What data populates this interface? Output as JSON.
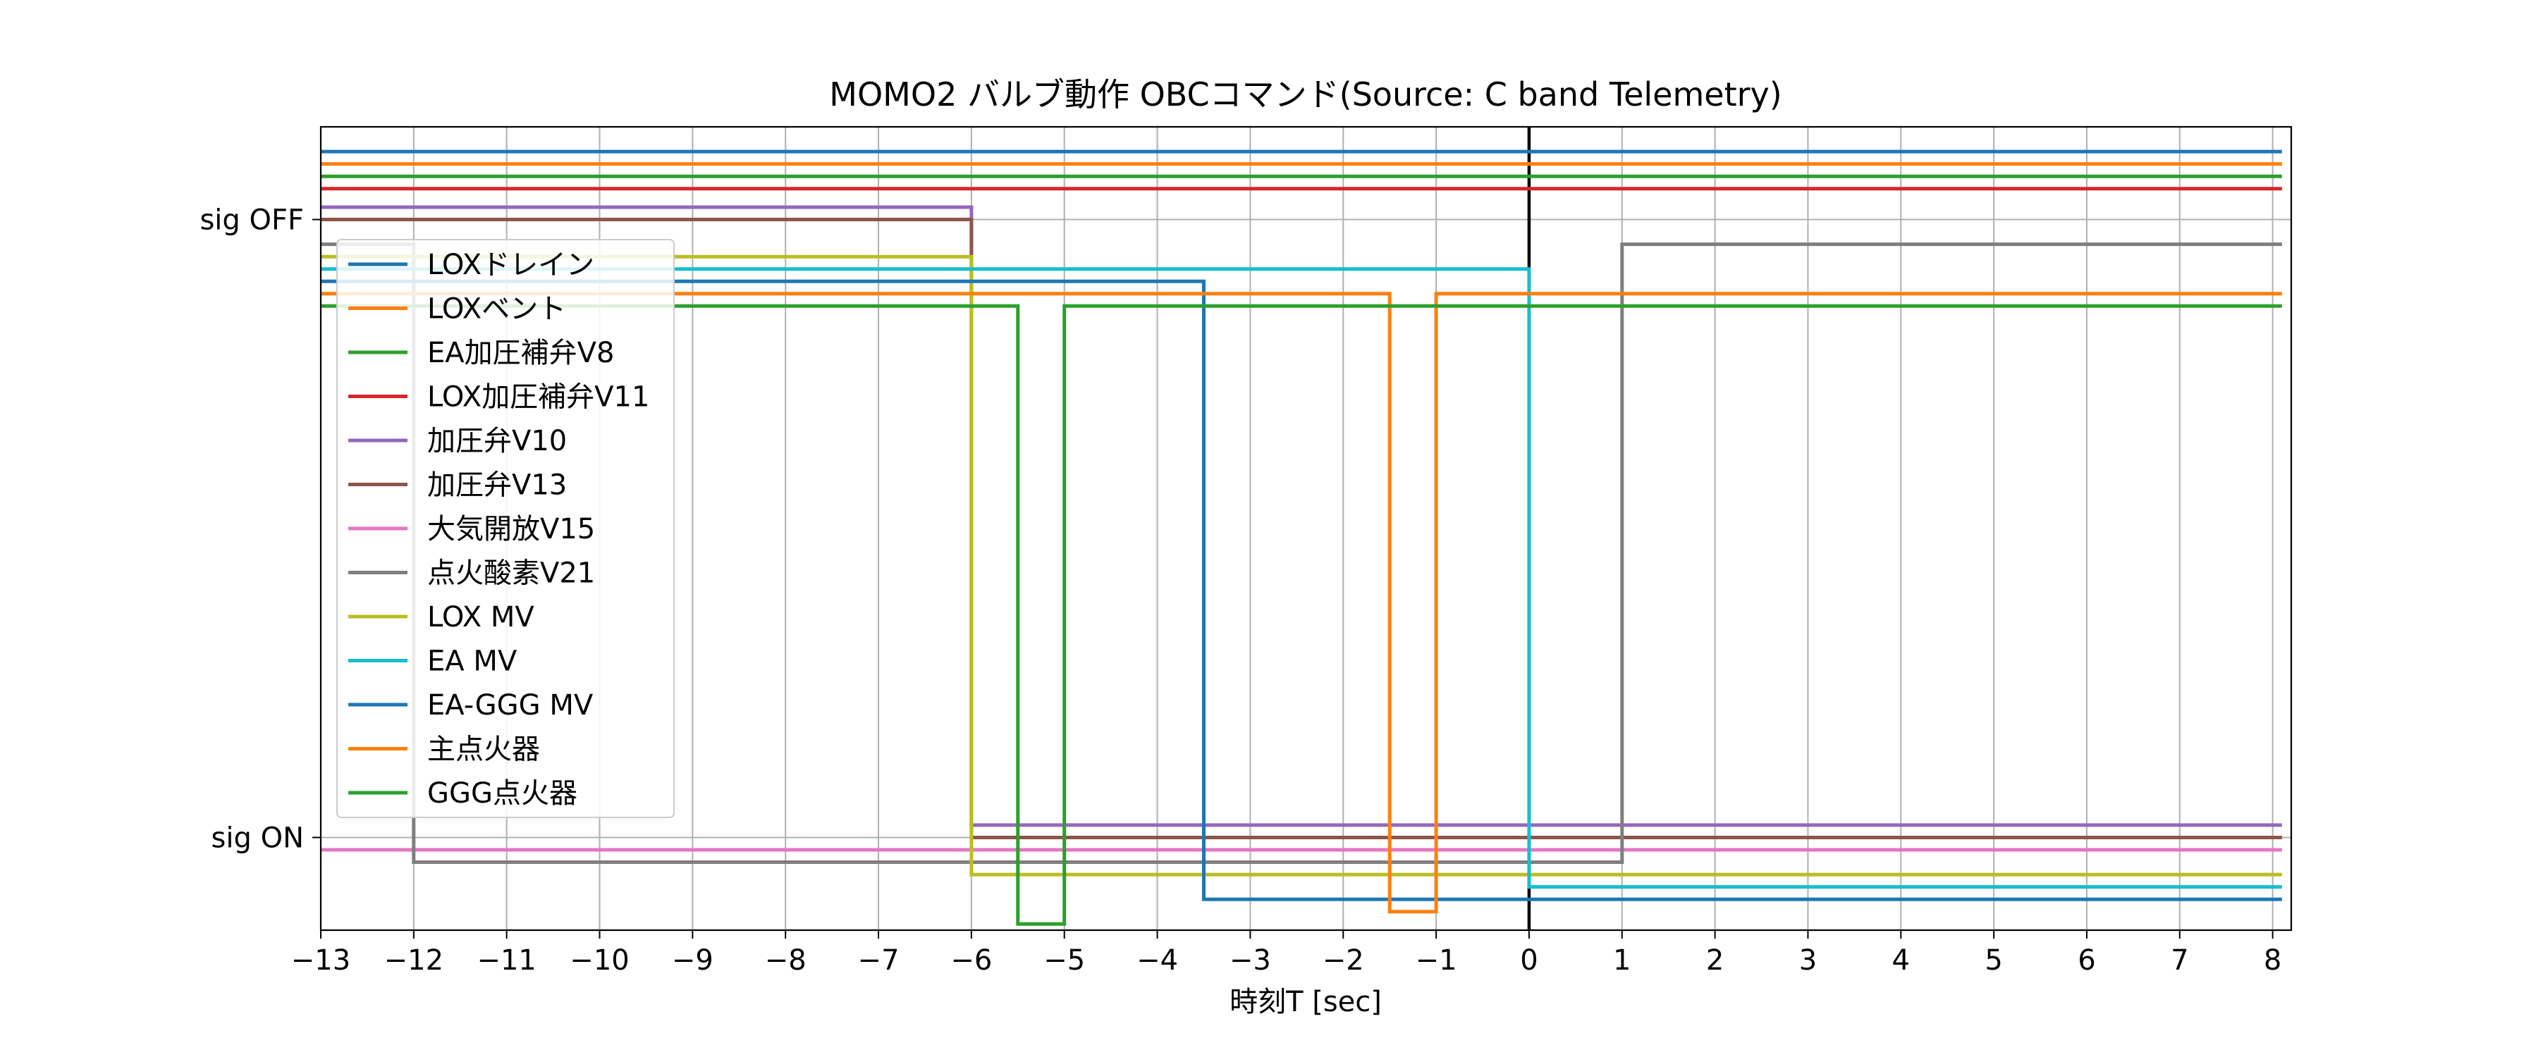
{
  "chart_data": {
    "type": "line",
    "title": "MOMO2 バルブ動作 OBCコマンド(Source: C band Telemetry)",
    "xlabel": "時刻T [sec]",
    "ylabel": "",
    "xlim": [
      -13,
      8.2
    ],
    "ylim": [
      -0.15,
      1.15
    ],
    "x_ticks": [
      -13,
      -12,
      -11,
      -10,
      -9,
      -8,
      -7,
      -6,
      -5,
      -4,
      -3,
      -2,
      -1,
      0,
      1,
      2,
      3,
      4,
      5,
      6,
      7,
      8
    ],
    "x_tick_labels": [
      "−13",
      "−12",
      "−11",
      "−10",
      "−9",
      "−8",
      "−7",
      "−6",
      "−5",
      "−4",
      "−3",
      "−2",
      "−1",
      "0",
      "1",
      "2",
      "3",
      "4",
      "5",
      "6",
      "7",
      "8"
    ],
    "y_ticks": [
      {
        "value": 1,
        "label": "sig OFF"
      },
      {
        "value": 0,
        "label": "sig ON"
      }
    ],
    "grid": true,
    "legend_position": "upper-left",
    "vertical_marker_x": 0,
    "series": [
      {
        "name": "LOXドレイン",
        "color": "#1f77b4",
        "x": [
          -13,
          8.1
        ],
        "y": [
          1.11,
          1.11
        ]
      },
      {
        "name": "LOXベント",
        "color": "#ff7f0e",
        "x": [
          -13,
          8.1
        ],
        "y": [
          1.09,
          1.09
        ]
      },
      {
        "name": "EA加圧補弁V8",
        "color": "#2ca02c",
        "x": [
          -13,
          8.1
        ],
        "y": [
          1.07,
          1.07
        ]
      },
      {
        "name": "LOX加圧補弁V11",
        "color": "#d62728",
        "x": [
          -13,
          8.1
        ],
        "y": [
          1.05,
          1.05
        ]
      },
      {
        "name": "加圧弁V10",
        "color": "#9467bd",
        "x": [
          -13,
          -6,
          -6,
          8.1
        ],
        "y": [
          1.02,
          1.02,
          0.02,
          0.02
        ]
      },
      {
        "name": "加圧弁V13",
        "color": "#8c564b",
        "x": [
          -13,
          -6,
          -6,
          8.1
        ],
        "y": [
          1.0,
          1.0,
          0.0,
          0.0
        ]
      },
      {
        "name": "大気開放V15",
        "color": "#e377c2",
        "x": [
          -13,
          8.1
        ],
        "y": [
          -0.02,
          -0.02
        ]
      },
      {
        "name": "点火酸素V21",
        "color": "#7f7f7f",
        "x": [
          -13,
          -12,
          -12,
          1,
          1,
          8.1
        ],
        "y": [
          0.96,
          0.96,
          -0.04,
          -0.04,
          0.96,
          0.96
        ]
      },
      {
        "name": "LOX MV",
        "color": "#bcbd22",
        "x": [
          -13,
          -6,
          -6,
          8.1
        ],
        "y": [
          0.94,
          0.94,
          -0.06,
          -0.06
        ]
      },
      {
        "name": "EA MV",
        "color": "#17becf",
        "x": [
          -13,
          0,
          0,
          8.1
        ],
        "y": [
          0.92,
          0.92,
          -0.08,
          -0.08
        ]
      },
      {
        "name": "EA-GGG MV",
        "color": "#1f77b4",
        "x": [
          -13,
          -3.5,
          -3.5,
          8.1
        ],
        "y": [
          0.9,
          0.9,
          -0.1,
          -0.1
        ]
      },
      {
        "name": "主点火器",
        "color": "#ff7f0e",
        "x": [
          -13,
          -1.5,
          -1.5,
          -1,
          -1,
          8.1
        ],
        "y": [
          0.88,
          0.88,
          -0.12,
          -0.12,
          0.88,
          0.88
        ]
      },
      {
        "name": "GGG点火器",
        "color": "#2ca02c",
        "x": [
          -13,
          -5.5,
          -5.5,
          -5,
          -5,
          8.1
        ],
        "y": [
          0.86,
          0.86,
          -0.14,
          -0.14,
          0.86,
          0.86
        ]
      }
    ]
  }
}
